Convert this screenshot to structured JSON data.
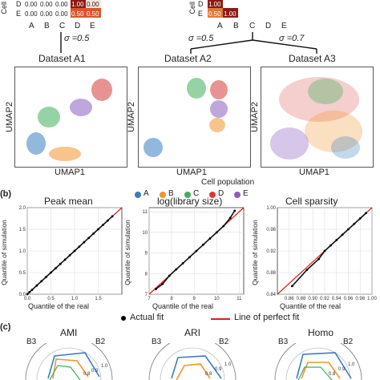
{
  "panel_a": {
    "matrix_left": {
      "row_label": "Cell",
      "rows": [
        {
          "label": "D",
          "values": [
            "0.00",
            "0.00",
            "0.00",
            "1.00",
            "0.00"
          ]
        },
        {
          "label": "E",
          "values": [
            "0.00",
            "0.00",
            "0.00",
            "0.50",
            "0.50"
          ]
        }
      ],
      "cols": [
        "A",
        "B",
        "C",
        "D",
        "E"
      ],
      "sigma": "σ =0.5"
    },
    "matrix_right": {
      "row_label": "Cell",
      "rows": [
        {
          "label": "D",
          "values": [
            "1.00"
          ]
        },
        {
          "label": "E",
          "values": [
            "0.50",
            "1.00"
          ]
        }
      ],
      "cols": [
        "A",
        "B",
        "C",
        "D",
        "E"
      ],
      "sigma_left": "σ =0.5",
      "sigma_right": "σ =0.7"
    },
    "datasets": [
      {
        "title": "Dataset A1"
      },
      {
        "title": "Dataset A2"
      },
      {
        "title": "Dataset A3"
      }
    ],
    "ylabel": "UMAP2",
    "xlabel": "UMAP1",
    "legend": {
      "title": "Cell population",
      "items": [
        {
          "label": "A",
          "color": "#3b7dc4"
        },
        {
          "label": "B",
          "color": "#f0952e"
        },
        {
          "label": "C",
          "color": "#3fae5a"
        },
        {
          "label": "D",
          "color": "#d63a3a"
        },
        {
          "label": "E",
          "color": "#8a5cc0"
        }
      ]
    }
  },
  "panel_b": {
    "label": "(b)",
    "ylabel": "Quantile of simulation",
    "xlabel": "Quantile of the real",
    "legend": {
      "actual": "Actual fit",
      "perfect": "Line of perfect fit"
    }
  },
  "panel_c": {
    "label": "(c)",
    "charts": [
      {
        "title": "AMI",
        "left": "B3",
        "right": "B2"
      },
      {
        "title": "ARI",
        "left": "B3",
        "right": "B2"
      },
      {
        "title": "Homo",
        "left": "B3",
        "right": "B2"
      }
    ]
  },
  "chart_data": [
    {
      "type": "scatter",
      "title": "Peak mean",
      "xlabel": "Quantile of the real",
      "ylabel": "Quantile of simulation",
      "xlim": [
        0,
        2.0
      ],
      "ylim": [
        0,
        2.0
      ],
      "xticks": [
        "0.0",
        "0.5",
        "1.0",
        "1.5"
      ],
      "yticks": [
        "0.0",
        "0.5",
        "1.0",
        "1.5",
        "2.0"
      ],
      "x": [
        0.0,
        0.05,
        0.1,
        0.2,
        0.3,
        0.4,
        0.5,
        0.6,
        0.7,
        0.8,
        0.9,
        1.0,
        1.1,
        1.2,
        1.3,
        1.4,
        1.5,
        1.6,
        1.7,
        1.8
      ],
      "y": [
        0.0,
        0.05,
        0.1,
        0.2,
        0.3,
        0.4,
        0.5,
        0.6,
        0.7,
        0.8,
        0.9,
        1.0,
        1.1,
        1.2,
        1.3,
        1.4,
        1.5,
        1.6,
        1.7,
        1.8
      ],
      "grid": true
    },
    {
      "type": "scatter",
      "title": "log(library size)",
      "xlabel": "Quantile of the real",
      "ylabel": "Quantile of simulation",
      "xlim": [
        7,
        11.2
      ],
      "ylim": [
        7,
        11.2
      ],
      "xticks": [
        "7",
        "8",
        "9",
        "10",
        "11"
      ],
      "yticks": [
        "7",
        "8",
        "9",
        "10",
        "11"
      ],
      "x": [
        7.3,
        7.6,
        7.9,
        8.2,
        8.5,
        8.8,
        9.1,
        9.4,
        9.7,
        10.0,
        10.3,
        10.6,
        10.8
      ],
      "y": [
        7.25,
        7.5,
        7.9,
        8.2,
        8.5,
        8.8,
        9.1,
        9.4,
        9.7,
        10.0,
        10.3,
        10.7,
        11.05
      ],
      "grid": true
    },
    {
      "type": "scatter",
      "title": "Cell sparsity",
      "xlabel": "Quantile of the real",
      "ylabel": "Quantile of simulation",
      "xlim": [
        0.84,
        1.0
      ],
      "ylim": [
        0.84,
        1.0
      ],
      "xticks": [
        "0.86",
        "0.88",
        "0.90",
        "0.92",
        "0.94",
        "0.96",
        "0.98",
        "1.00"
      ],
      "yticks": [
        "0.84",
        "0.88",
        "0.92",
        "0.96",
        "1.00"
      ],
      "x": [
        0.865,
        0.89,
        0.91,
        0.92,
        0.93,
        0.94,
        0.95,
        0.96,
        0.97,
        0.98,
        0.99
      ],
      "y": [
        0.855,
        0.885,
        0.905,
        0.92,
        0.93,
        0.94,
        0.95,
        0.96,
        0.97,
        0.98,
        0.99
      ],
      "grid": true
    }
  ]
}
